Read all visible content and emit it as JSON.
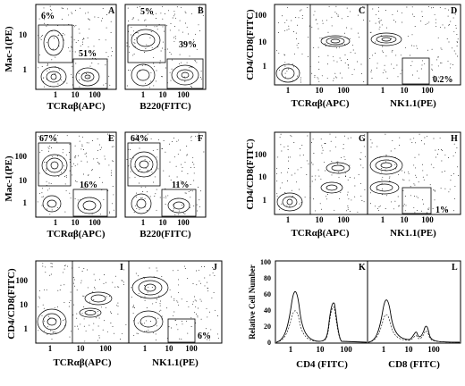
{
  "figure": {
    "panels": [
      {
        "letter": "A",
        "ylabel": "Mac-1(PE)",
        "xlabel": "TCRαβ(APC)",
        "ticks_y": [
          "10",
          "1"
        ],
        "ticks_x": [
          "1",
          "10",
          "100"
        ],
        "percents": [
          "6%",
          "51%"
        ]
      },
      {
        "letter": "B",
        "ylabel": "",
        "xlabel": "B220(FITC)",
        "ticks_y": [],
        "ticks_x": [
          "1",
          "10",
          "100"
        ],
        "percents": [
          "5%",
          "39%"
        ]
      },
      {
        "letter": "C",
        "ylabel": "CD4/CD8(FITC)",
        "xlabel": "TCRαβ(APC)",
        "ticks_y": [
          "100",
          "10",
          "1"
        ],
        "ticks_x": [
          "1",
          "10",
          "100"
        ],
        "percents": []
      },
      {
        "letter": "D",
        "ylabel": "",
        "xlabel": "NK1.1(PE)",
        "ticks_y": [],
        "ticks_x": [
          "1",
          "10",
          "100"
        ],
        "percents": [
          "0.2%"
        ]
      },
      {
        "letter": "E",
        "ylabel": "Mac-1(PE)",
        "xlabel": "TCRαβ(APC)",
        "ticks_y": [
          "100",
          "10",
          "1"
        ],
        "ticks_x": [
          "1",
          "10",
          "100"
        ],
        "percents": [
          "67%",
          "16%"
        ]
      },
      {
        "letter": "F",
        "ylabel": "",
        "xlabel": "B220(FITC)",
        "ticks_y": [],
        "ticks_x": [
          "1",
          "10",
          "100"
        ],
        "percents": [
          "64%",
          "11%"
        ]
      },
      {
        "letter": "G",
        "ylabel": "CD4/CD8(FITC)",
        "xlabel": "TCRαβ(APC)",
        "ticks_y": [
          "100",
          "10",
          "1"
        ],
        "ticks_x": [
          "1",
          "10",
          "100"
        ],
        "percents": []
      },
      {
        "letter": "H",
        "ylabel": "",
        "xlabel": "NK1.1(PE)",
        "ticks_y": [],
        "ticks_x": [
          "1",
          "10",
          "100"
        ],
        "percents": [
          "1%"
        ]
      },
      {
        "letter": "I",
        "ylabel": "CD4/CD8(FITC)",
        "xlabel": "TCRαβ(APC)",
        "ticks_y": [
          "100",
          "10",
          "1"
        ],
        "ticks_x": [
          "1",
          "10",
          "100"
        ],
        "percents": []
      },
      {
        "letter": "J",
        "ylabel": "",
        "xlabel": "NK1.1(PE)",
        "ticks_y": [],
        "ticks_x": [
          "1",
          "10",
          "100"
        ],
        "percents": [
          "6%"
        ]
      },
      {
        "letter": "K",
        "ylabel": "Relative Cell Number",
        "xlabel": "CD4 (FITC)",
        "ticks_y": [
          "100",
          "80",
          "60",
          "40",
          "20",
          "0"
        ],
        "ticks_x": [
          "1",
          "10",
          "100"
        ],
        "percents": []
      },
      {
        "letter": "L",
        "ylabel": "",
        "xlabel": "CD8 (FITC)",
        "ticks_y": [],
        "ticks_x": [
          "1",
          "10",
          "100"
        ],
        "percents": []
      }
    ]
  }
}
